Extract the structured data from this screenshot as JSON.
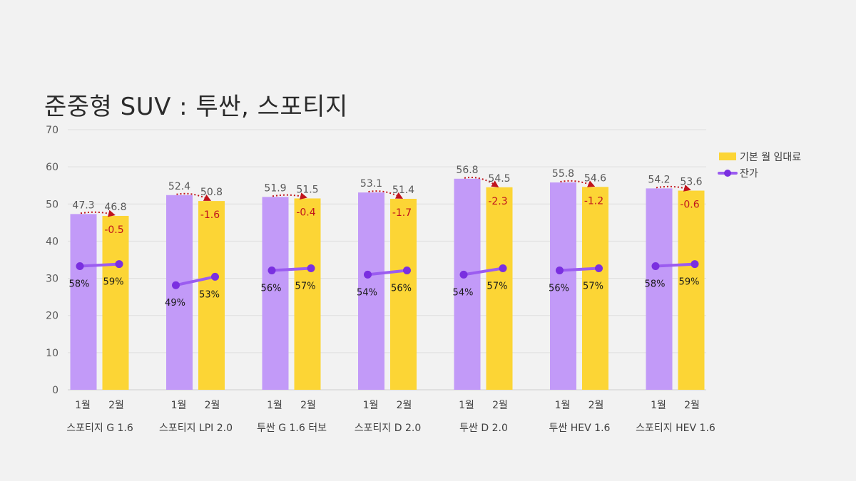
{
  "title": "준중형 SUV : 투싼, 스포티지",
  "chart_data": {
    "type": "bar",
    "title": "준중형 SUV : 투싼, 스포티지",
    "ylim": [
      0,
      70
    ],
    "yticks": [
      0,
      10,
      20,
      30,
      40,
      50,
      60,
      70
    ],
    "grid": true,
    "legend_position": "top-right",
    "month_labels": [
      "1월",
      "2월"
    ],
    "groups": [
      "스포티지 G 1.6",
      "스포티지 LPI 2.0",
      "투싼 G 1.6 터보",
      "스포티지 D 2.0",
      "투싼 D 2.0",
      "투싼 HEV 1.6",
      "스포티지 HEV 1.6"
    ],
    "series": [
      {
        "name": "기본 월 임대료",
        "color_jan": "#c29af8",
        "color_feb": "#fcd535",
        "jan": [
          47.3,
          52.4,
          51.9,
          53.1,
          56.8,
          55.8,
          54.2
        ],
        "feb": [
          46.8,
          50.8,
          51.5,
          51.4,
          54.5,
          54.6,
          53.6
        ],
        "jan_labels": [
          "47.3",
          "52.4",
          "51.9",
          "53.1",
          "56.8",
          "55.8",
          "54.2"
        ],
        "feb_labels": [
          "46.8",
          "50.8",
          "51.5",
          "51.4",
          "54.5",
          "54.6",
          "53.6"
        ],
        "change_labels": [
          "-0.5",
          "-1.6",
          "-0.4",
          "-1.7",
          "-2.3",
          "-1.2",
          "-0.6"
        ]
      },
      {
        "name": "잔가",
        "color": "#9b5cf0",
        "marker_color": "#7a2fe0",
        "jan": [
          58,
          49,
          56,
          54,
          54,
          56,
          58
        ],
        "feb": [
          59,
          53,
          57,
          56,
          57,
          57,
          59
        ],
        "jan_labels": [
          "58%",
          "49%",
          "56%",
          "54%",
          "54%",
          "56%",
          "58%"
        ],
        "feb_labels": [
          "59%",
          "53%",
          "57%",
          "56%",
          "57%",
          "57%",
          "59%"
        ]
      }
    ],
    "change_color": "#c0141c"
  }
}
